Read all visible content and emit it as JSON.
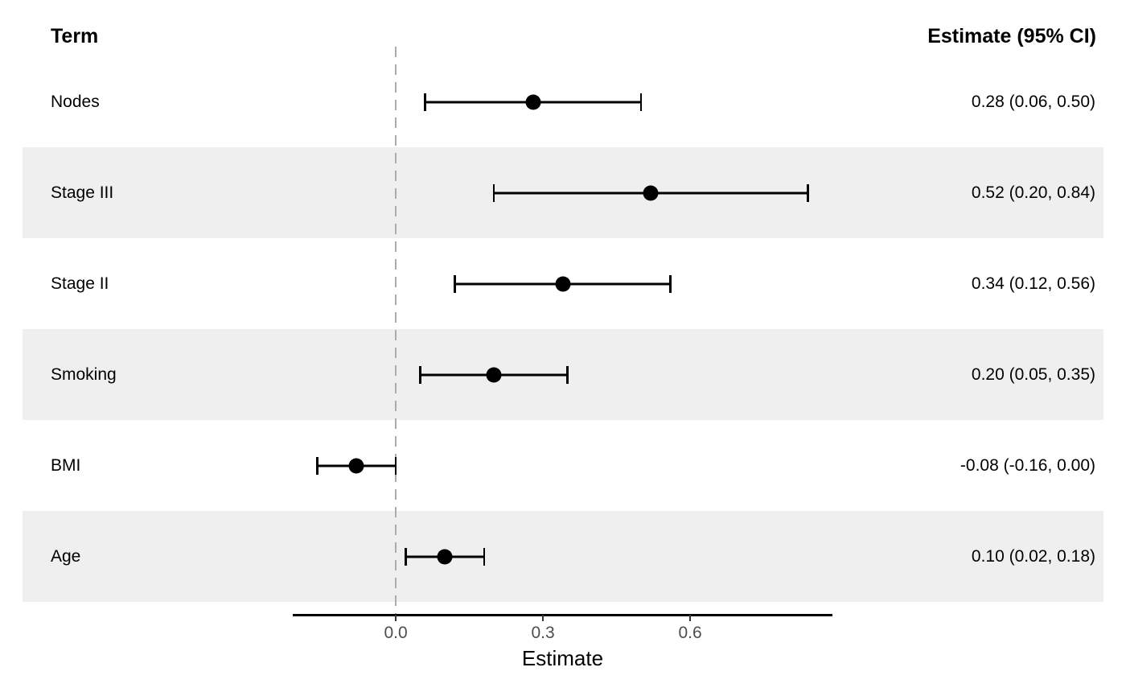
{
  "header": {
    "term": "Term",
    "estimate": "Estimate (95% CI)"
  },
  "chart_data": {
    "type": "forest",
    "title": "",
    "xlabel": "Estimate",
    "xlim": [
      -0.21,
      0.89
    ],
    "x_ticks": [
      0,
      0.3,
      0.6
    ],
    "x_tick_labels": [
      "0.0",
      "0.3",
      "0.6"
    ],
    "reference_line_x": 0,
    "grid": false,
    "stripes": "alternating row shading starting at second row",
    "rows": [
      {
        "term": "Nodes",
        "estimate": 0.28,
        "ci_low": 0.06,
        "ci_high": 0.5,
        "label": "0.28 (0.06, 0.50)",
        "striped": false
      },
      {
        "term": "Stage III",
        "estimate": 0.52,
        "ci_low": 0.2,
        "ci_high": 0.84,
        "label": "0.52 (0.20, 0.84)",
        "striped": true
      },
      {
        "term": "Stage II",
        "estimate": 0.34,
        "ci_low": 0.12,
        "ci_high": 0.56,
        "label": "0.34 (0.12, 0.56)",
        "striped": false
      },
      {
        "term": "Smoking",
        "estimate": 0.2,
        "ci_low": 0.05,
        "ci_high": 0.35,
        "label": "0.20 (0.05, 0.35)",
        "striped": true
      },
      {
        "term": "BMI",
        "estimate": -0.08,
        "ci_low": -0.16,
        "ci_high": 0.0,
        "label": "-0.08 (-0.16, 0.00)",
        "striped": false
      },
      {
        "term": "Age",
        "estimate": 0.1,
        "ci_low": 0.02,
        "ci_high": 0.18,
        "label": "0.10 (0.02, 0.18)",
        "striped": true
      }
    ],
    "colors": {
      "stripe": "#efefef",
      "point": "#000000",
      "ci_line": "#000000",
      "reference_line": "#ababab",
      "axis_line": "#000000",
      "tick_mark": "#333333",
      "tick_label": "#4d4d4d",
      "text": "#000000"
    }
  }
}
